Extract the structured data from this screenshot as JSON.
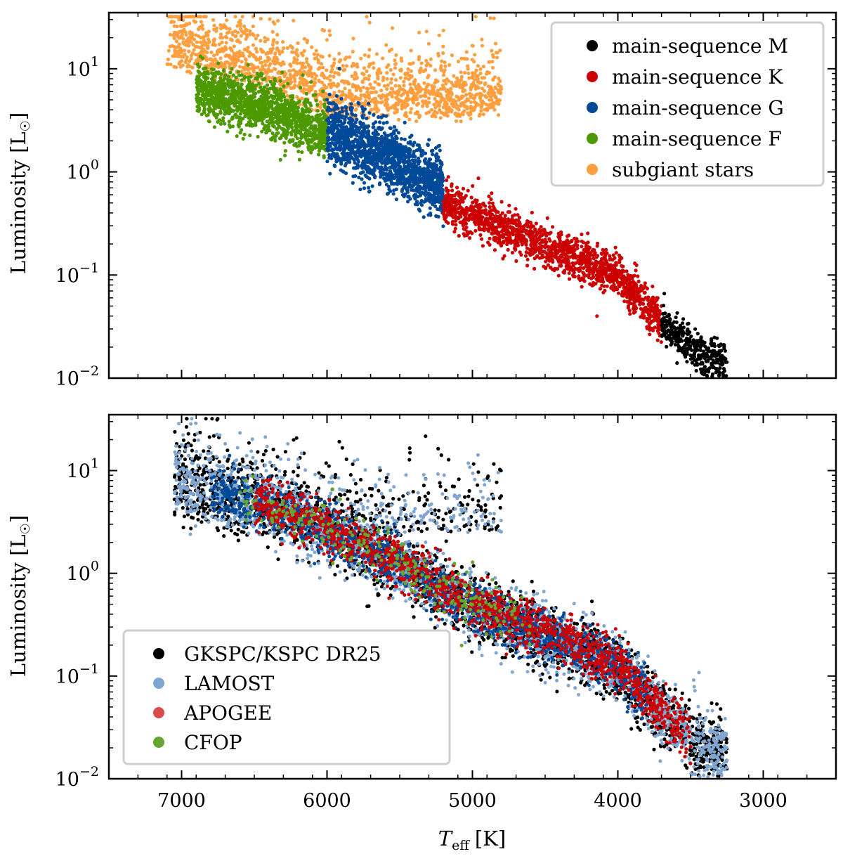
{
  "chart_data": [
    {
      "type": "scatter",
      "panel": "top",
      "xlabel": "",
      "ylabel": "Luminosity [L☉]",
      "xlim": [
        7500,
        2500
      ],
      "xscale": "linear",
      "xinverted": true,
      "ylim": [
        0.01,
        35
      ],
      "yscale": "log",
      "xticks": [
        7000,
        6000,
        5000,
        4000,
        3000
      ],
      "xtick_labels_shown": false,
      "yticks": [
        {
          "value": 0.01,
          "base": "10",
          "exp": "−2"
        },
        {
          "value": 0.1,
          "base": "10",
          "exp": "−1"
        },
        {
          "value": 1,
          "base": "10",
          "exp": "0"
        },
        {
          "value": 10,
          "base": "10",
          "exp": "1"
        }
      ],
      "grid": false,
      "legend_position": "top-right",
      "series": [
        {
          "name": "main-sequence M",
          "color": "#000000",
          "region": {
            "teff_range": [
              3250,
              3700
            ],
            "lum_at_teff": [
              [
                3700,
                0.028
              ],
              [
                3250,
                0.015
              ]
            ],
            "spread_dex": 0.12
          }
        },
        {
          "name": "main-sequence K",
          "color": "#cc0000",
          "region": {
            "teff_range": [
              3700,
              5200
            ],
            "lum_at_teff": [
              [
                5200,
                0.45
              ],
              [
                3700,
                0.035
              ]
            ],
            "spread_dex": 0.18
          }
        },
        {
          "name": "main-sequence G",
          "color": "#004a99",
          "region": {
            "teff_range": [
              5200,
              6000
            ],
            "lum_at_teff": [
              [
                6000,
                2.0
              ],
              [
                5200,
                0.6
              ]
            ],
            "spread_dex": 0.22
          }
        },
        {
          "name": "main-sequence F",
          "color": "#4d9900",
          "region": {
            "teff_range": [
              6000,
              7000
            ],
            "lum_at_teff": [
              [
                7000,
                5.0
              ],
              [
                6000,
                1.9
              ]
            ],
            "spread_dex": 0.2
          }
        },
        {
          "name": "subgiant stars",
          "color": "#ff9f40",
          "region": {
            "teff_range": [
              4800,
              7100
            ],
            "lum_range": [
              3.0,
              30
            ]
          }
        }
      ]
    },
    {
      "type": "scatter",
      "panel": "bottom",
      "xlabel": "T_eff [K]",
      "ylabel": "Luminosity [L☉]",
      "xlim": [
        7500,
        2500
      ],
      "xscale": "linear",
      "xinverted": true,
      "ylim": [
        0.01,
        35
      ],
      "yscale": "log",
      "xticks": [
        {
          "value": 7000,
          "label": "7000"
        },
        {
          "value": 6000,
          "label": "6000"
        },
        {
          "value": 5000,
          "label": "5000"
        },
        {
          "value": 4000,
          "label": "4000"
        },
        {
          "value": 3000,
          "label": "3000"
        }
      ],
      "yticks": [
        {
          "value": 0.01,
          "base": "10",
          "exp": "−2"
        },
        {
          "value": 0.1,
          "base": "10",
          "exp": "−1"
        },
        {
          "value": 1,
          "base": "10",
          "exp": "0"
        },
        {
          "value": 10,
          "base": "10",
          "exp": "1"
        }
      ],
      "grid": false,
      "legend_position": "bottom-left",
      "series": [
        {
          "name": "GKSPC/KSPC DR25",
          "color": "#000000"
        },
        {
          "name": "LAMOST",
          "color": "#7fa6d1"
        },
        {
          "name": "APOGEE",
          "color": "#d94c4c"
        },
        {
          "name": "CFOP",
          "color": "#66a633"
        }
      ]
    }
  ],
  "axis_text": {
    "xlabel_main": "T",
    "xlabel_sub": "eff",
    "xlabel_units": "[K]",
    "ylabel_top": "Luminosity [L",
    "ylabel_symbol": "☉",
    "ylabel_close": "]",
    "ylabel_bottom": "Luminosity [L"
  }
}
